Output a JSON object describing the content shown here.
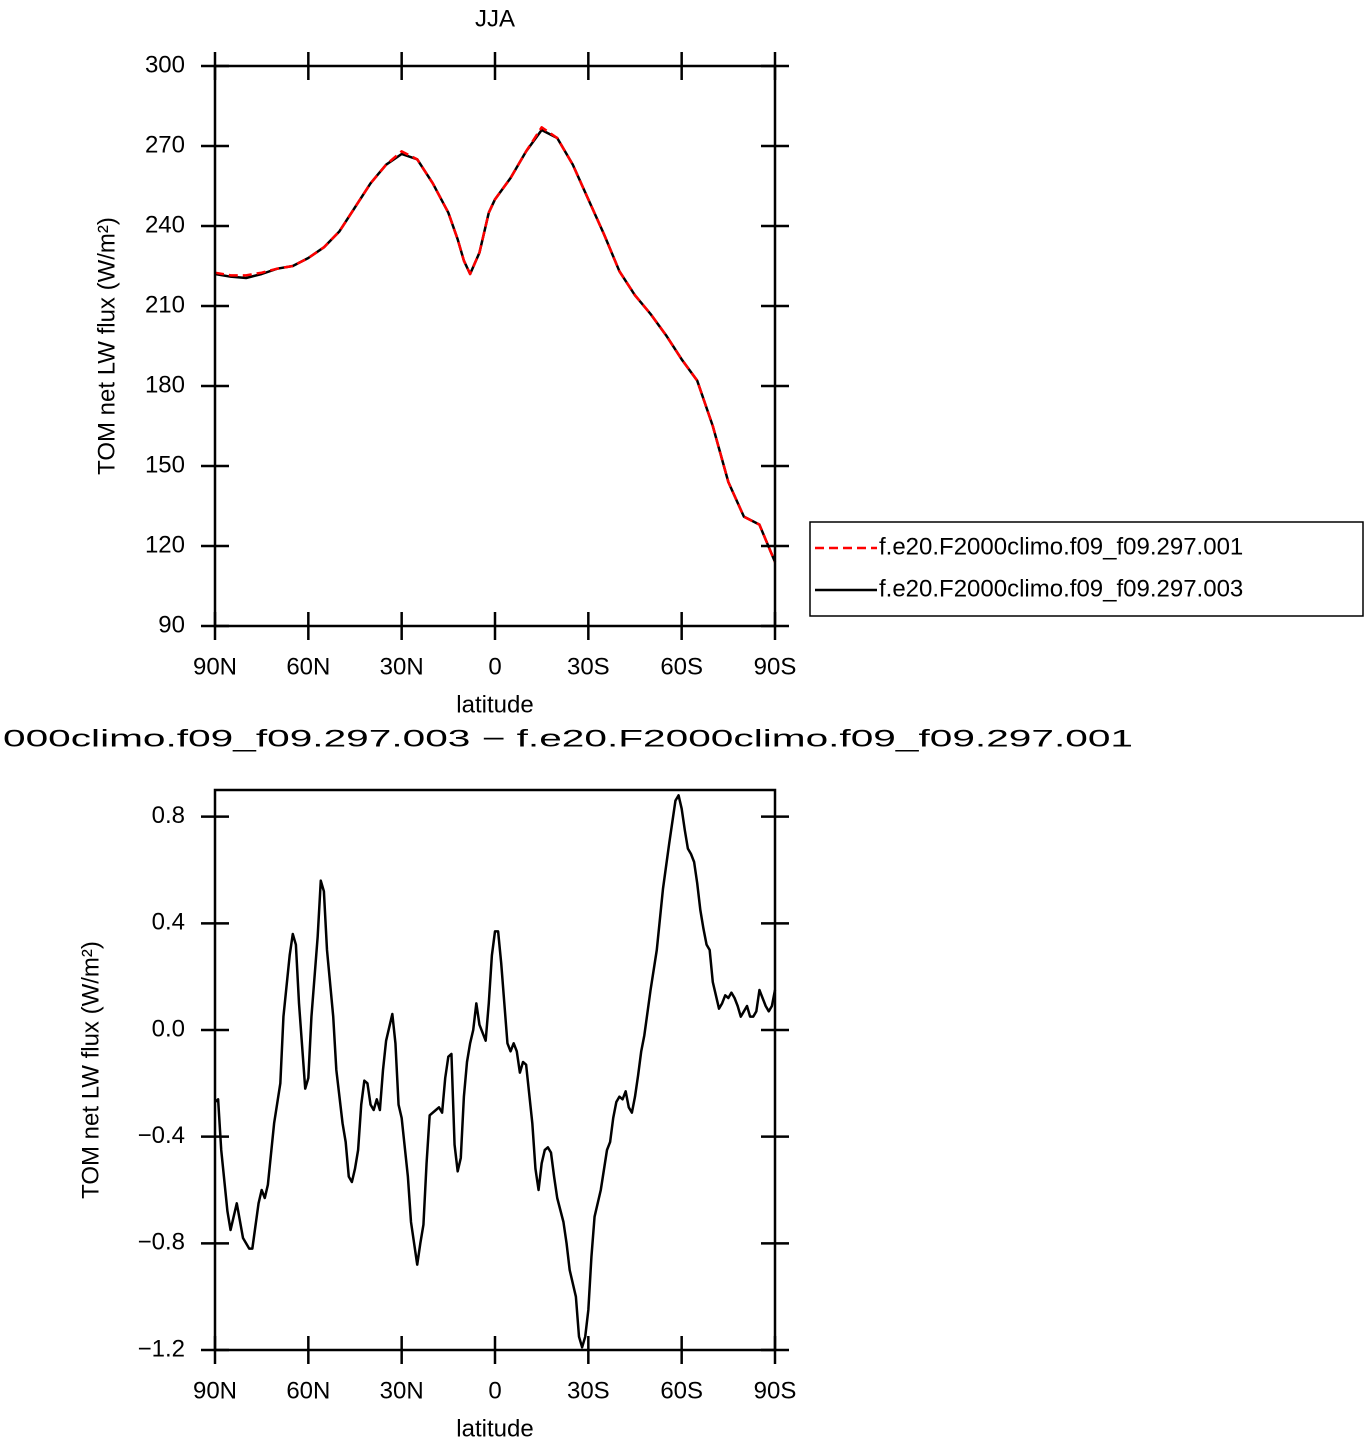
{
  "chart_data": [
    {
      "type": "line",
      "title": "JJA",
      "xlabel": "latitude",
      "ylabel": "TOM net LW flux (W/m²)",
      "xlim": [
        90,
        -90
      ],
      "ylim": [
        90,
        300
      ],
      "xticks": [
        {
          "value": 90,
          "label": "90N"
        },
        {
          "value": 60,
          "label": "60N"
        },
        {
          "value": 30,
          "label": "30N"
        },
        0,
        {
          "value": -30,
          "label": "30S"
        },
        {
          "value": -60,
          "label": "60S"
        },
        {
          "value": -90,
          "label": "90S"
        }
      ],
      "yticks": [
        90,
        120,
        150,
        180,
        210,
        240,
        270,
        300
      ],
      "legend": "right",
      "x": [
        90,
        85,
        80,
        75,
        70,
        65,
        60,
        55,
        50,
        45,
        40,
        35,
        30,
        25,
        20,
        15,
        12,
        10,
        8,
        5,
        2,
        0,
        -5,
        -10,
        -15,
        -20,
        -25,
        -30,
        -35,
        -40,
        -45,
        -50,
        -55,
        -60,
        -65,
        -70,
        -75,
        -80,
        -85,
        -90
      ],
      "series": [
        {
          "name": "f.e20.F2000climo.f09_f09.297.001",
          "color": "#ff0000",
          "linestyle": "dashed",
          "values": [
            222.5,
            221.5,
            221.5,
            222.5,
            224,
            225,
            228,
            232,
            238,
            247,
            256,
            263,
            268,
            265,
            256,
            245,
            235,
            227,
            222,
            230,
            245,
            250,
            258,
            268,
            277,
            273,
            263,
            250,
            237,
            223,
            214,
            207,
            199,
            190,
            182,
            165,
            144,
            131,
            128,
            114
          ]
        },
        {
          "name": "f.e20.F2000climo.f09_f09.297.003",
          "color": "#000000",
          "linestyle": "solid",
          "values": [
            222,
            221,
            220.5,
            222,
            224,
            225,
            228,
            232,
            238,
            247,
            256,
            263,
            267,
            265,
            256,
            245,
            235,
            227,
            222,
            230,
            245,
            250,
            258,
            268,
            276,
            273,
            263,
            250,
            237,
            223,
            214,
            207,
            199,
            190,
            182,
            165,
            144,
            131,
            128,
            114
          ]
        }
      ]
    },
    {
      "type": "line",
      "title": "000climo.f09_f09.297.003 − f.e20.F2000climo.f09_f09.297.001",
      "xlabel": "latitude",
      "ylabel": "TOM net LW flux (W/m²)",
      "xlim": [
        90,
        -90
      ],
      "ylim": [
        -1.2,
        0.9
      ],
      "xticks": [
        {
          "value": 90,
          "label": "90N"
        },
        {
          "value": 60,
          "label": "60N"
        },
        {
          "value": 30,
          "label": "30N"
        },
        0,
        {
          "value": -30,
          "label": "30S"
        },
        {
          "value": -60,
          "label": "60S"
        },
        {
          "value": -90,
          "label": "90S"
        }
      ],
      "yticks": [
        {
          "value": -1.2,
          "label": "−1.2"
        },
        {
          "value": -0.8,
          "label": "−0.8"
        },
        {
          "value": -0.4,
          "label": "−0.4"
        },
        {
          "value": 0,
          "label": "0.0"
        },
        0.4,
        0.8
      ],
      "x": [
        90,
        89,
        88,
        86,
        85,
        83,
        81,
        79,
        78,
        76,
        75,
        74,
        73,
        71,
        69,
        68,
        66,
        65,
        64,
        63,
        61,
        60,
        59,
        57,
        56,
        55,
        54,
        52,
        51,
        49,
        48,
        47,
        46,
        45,
        44,
        43,
        42,
        41,
        40,
        39,
        38,
        37,
        36,
        35,
        33,
        32,
        31,
        30,
        28,
        27,
        25,
        24,
        23,
        22,
        21,
        19,
        18,
        17,
        16,
        15,
        14,
        13,
        12,
        11,
        10,
        9,
        8,
        7,
        6,
        5,
        4,
        3,
        2,
        1,
        0,
        -1,
        -2,
        -3,
        -4,
        -5,
        -6,
        -7,
        -8,
        -9,
        -10,
        -12,
        -13,
        -14,
        -15,
        -16,
        -17,
        -18,
        -19,
        -20,
        -22,
        -23,
        -24,
        -26,
        -27,
        -28,
        -29,
        -30,
        -31,
        -32,
        -34,
        -36,
        -37,
        -38,
        -39,
        -40,
        -41,
        -42,
        -43,
        -44,
        -45,
        -46,
        -47,
        -48,
        -50,
        -52,
        -54,
        -56,
        -58,
        -59,
        -60,
        -61,
        -62,
        -63,
        -64,
        -65,
        -66,
        -67,
        -68,
        -69,
        -70,
        -71,
        -72,
        -73,
        -74,
        -75,
        -76,
        -77,
        -78,
        -79,
        -80,
        -81,
        -82,
        -83,
        -84,
        -85,
        -86,
        -87,
        -88,
        -89,
        -90
      ],
      "series": [
        {
          "color": "#000000",
          "linestyle": "solid",
          "values": [
            -0.27,
            -0.26,
            -0.45,
            -0.68,
            -0.75,
            -0.65,
            -0.78,
            -0.82,
            -0.82,
            -0.65,
            -0.6,
            -0.63,
            -0.58,
            -0.35,
            -0.2,
            0.05,
            0.28,
            0.36,
            0.32,
            0.1,
            -0.22,
            -0.18,
            0.05,
            0.35,
            0.56,
            0.52,
            0.3,
            0.05,
            -0.15,
            -0.35,
            -0.42,
            -0.55,
            -0.57,
            -0.52,
            -0.45,
            -0.28,
            -0.19,
            -0.2,
            -0.28,
            -0.3,
            -0.26,
            -0.3,
            -0.15,
            -0.04,
            0.06,
            -0.05,
            -0.28,
            -0.33,
            -0.55,
            -0.72,
            -0.88,
            -0.8,
            -0.73,
            -0.5,
            -0.32,
            -0.3,
            -0.29,
            -0.31,
            -0.18,
            -0.1,
            -0.09,
            -0.43,
            -0.53,
            -0.48,
            -0.25,
            -0.12,
            -0.05,
            0,
            0.1,
            0.02,
            -0.01,
            -0.04,
            0.1,
            0.28,
            0.37,
            0.37,
            0.25,
            0.1,
            -0.05,
            -0.08,
            -0.05,
            -0.08,
            -0.16,
            -0.12,
            -0.13,
            -0.35,
            -0.52,
            -0.6,
            -0.5,
            -0.45,
            -0.44,
            -0.46,
            -0.55,
            -0.63,
            -0.72,
            -0.8,
            -0.9,
            -1.0,
            -1.15,
            -1.19,
            -1.15,
            -1.05,
            -0.85,
            -0.7,
            -0.6,
            -0.45,
            -0.42,
            -0.33,
            -0.27,
            -0.25,
            -0.26,
            -0.23,
            -0.29,
            -0.31,
            -0.25,
            -0.17,
            -0.08,
            -0.02,
            0.15,
            0.3,
            0.53,
            0.7,
            0.86,
            0.88,
            0.83,
            0.75,
            0.68,
            0.66,
            0.63,
            0.55,
            0.45,
            0.38,
            0.32,
            0.3,
            0.18,
            0.13,
            0.08,
            0.1,
            0.13,
            0.12,
            0.14,
            0.12,
            0.09,
            0.05,
            0.07,
            0.09,
            0.05,
            0.05,
            0.07,
            0.15,
            0.12,
            0.09,
            0.07,
            0.09,
            0.15
          ]
        }
      ]
    }
  ]
}
